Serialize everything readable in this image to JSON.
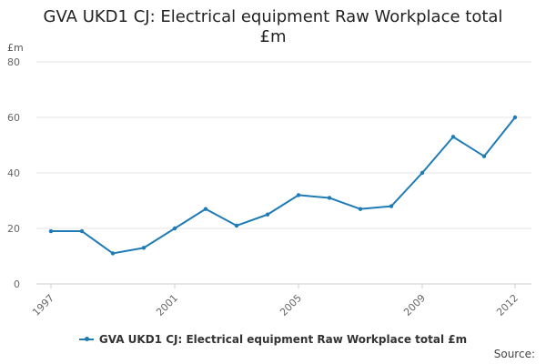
{
  "chart_data": {
    "type": "line",
    "title": "GVA UKD1 CJ: Electrical equipment Raw Workplace total £m",
    "title_lines": [
      "GVA UKD1 CJ: Electrical equipment Raw Workplace total",
      "£m"
    ],
    "y_unit": "£m",
    "x": [
      1997,
      1998,
      1999,
      2000,
      2001,
      2002,
      2003,
      2004,
      2005,
      2006,
      2007,
      2008,
      2009,
      2010,
      2011,
      2012
    ],
    "x_tick_labels": [
      "1997",
      "2001",
      "2005",
      "2009",
      "2012"
    ],
    "ylim": [
      0,
      80
    ],
    "y_ticks": [
      "0",
      "20",
      "40",
      "60",
      "80"
    ],
    "grid": true,
    "legend_position": "bottom",
    "series": [
      {
        "name": "GVA UKD1 CJ: Electrical equipment Raw Workplace total £m",
        "color": "#1f7bb6",
        "values": [
          19,
          19,
          11,
          13,
          20,
          27,
          21,
          25,
          32,
          31,
          27,
          28,
          40,
          53,
          46,
          60
        ]
      }
    ]
  },
  "source_label": "Source:"
}
